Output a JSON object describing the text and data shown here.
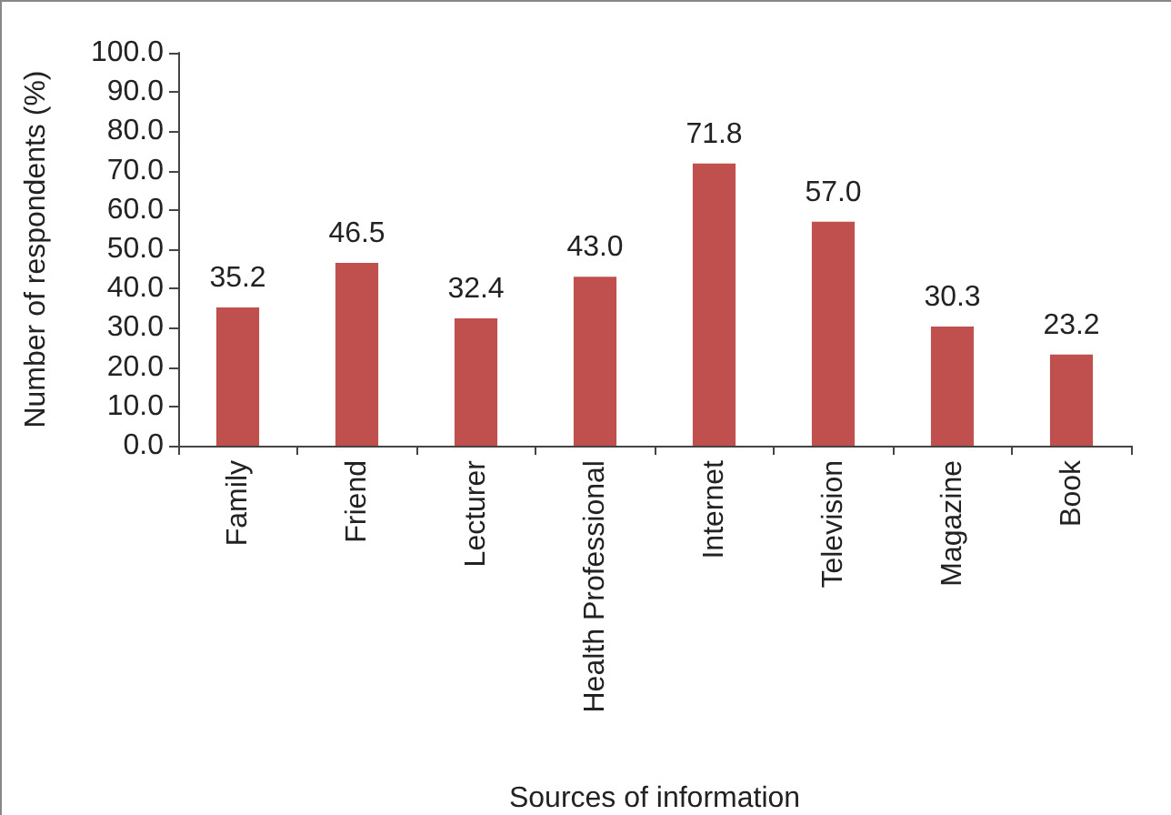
{
  "chart_data": {
    "type": "bar",
    "xlabel": "Sources of information",
    "ylabel": "Number of respondents (%)",
    "categories": [
      "Family",
      "Friend",
      "Lecturer",
      "Health Professional",
      "Internet",
      "Television",
      "Magazine",
      "Book"
    ],
    "values": [
      35.2,
      46.5,
      32.4,
      43.0,
      71.8,
      57.0,
      30.3,
      23.2
    ],
    "value_labels": [
      "35.2",
      "46.5",
      "32.4",
      "43.0",
      "71.8",
      "57.0",
      "30.3",
      "23.2"
    ],
    "color": "#c0504d",
    "ylim": [
      0,
      100
    ],
    "yticks": [
      {
        "value": 0,
        "label": "0.0"
      },
      {
        "value": 10,
        "label": "10.0"
      },
      {
        "value": 20,
        "label": "20.0"
      },
      {
        "value": 30,
        "label": "30.0"
      },
      {
        "value": 40,
        "label": "40.0"
      },
      {
        "value": 50,
        "label": "50.0"
      },
      {
        "value": 60,
        "label": "60.0"
      },
      {
        "value": 70,
        "label": "70.0"
      },
      {
        "value": 80,
        "label": "80.0"
      },
      {
        "value": 90,
        "label": "90.0"
      },
      {
        "value": 100,
        "label": "100.0"
      }
    ],
    "grid": false
  }
}
